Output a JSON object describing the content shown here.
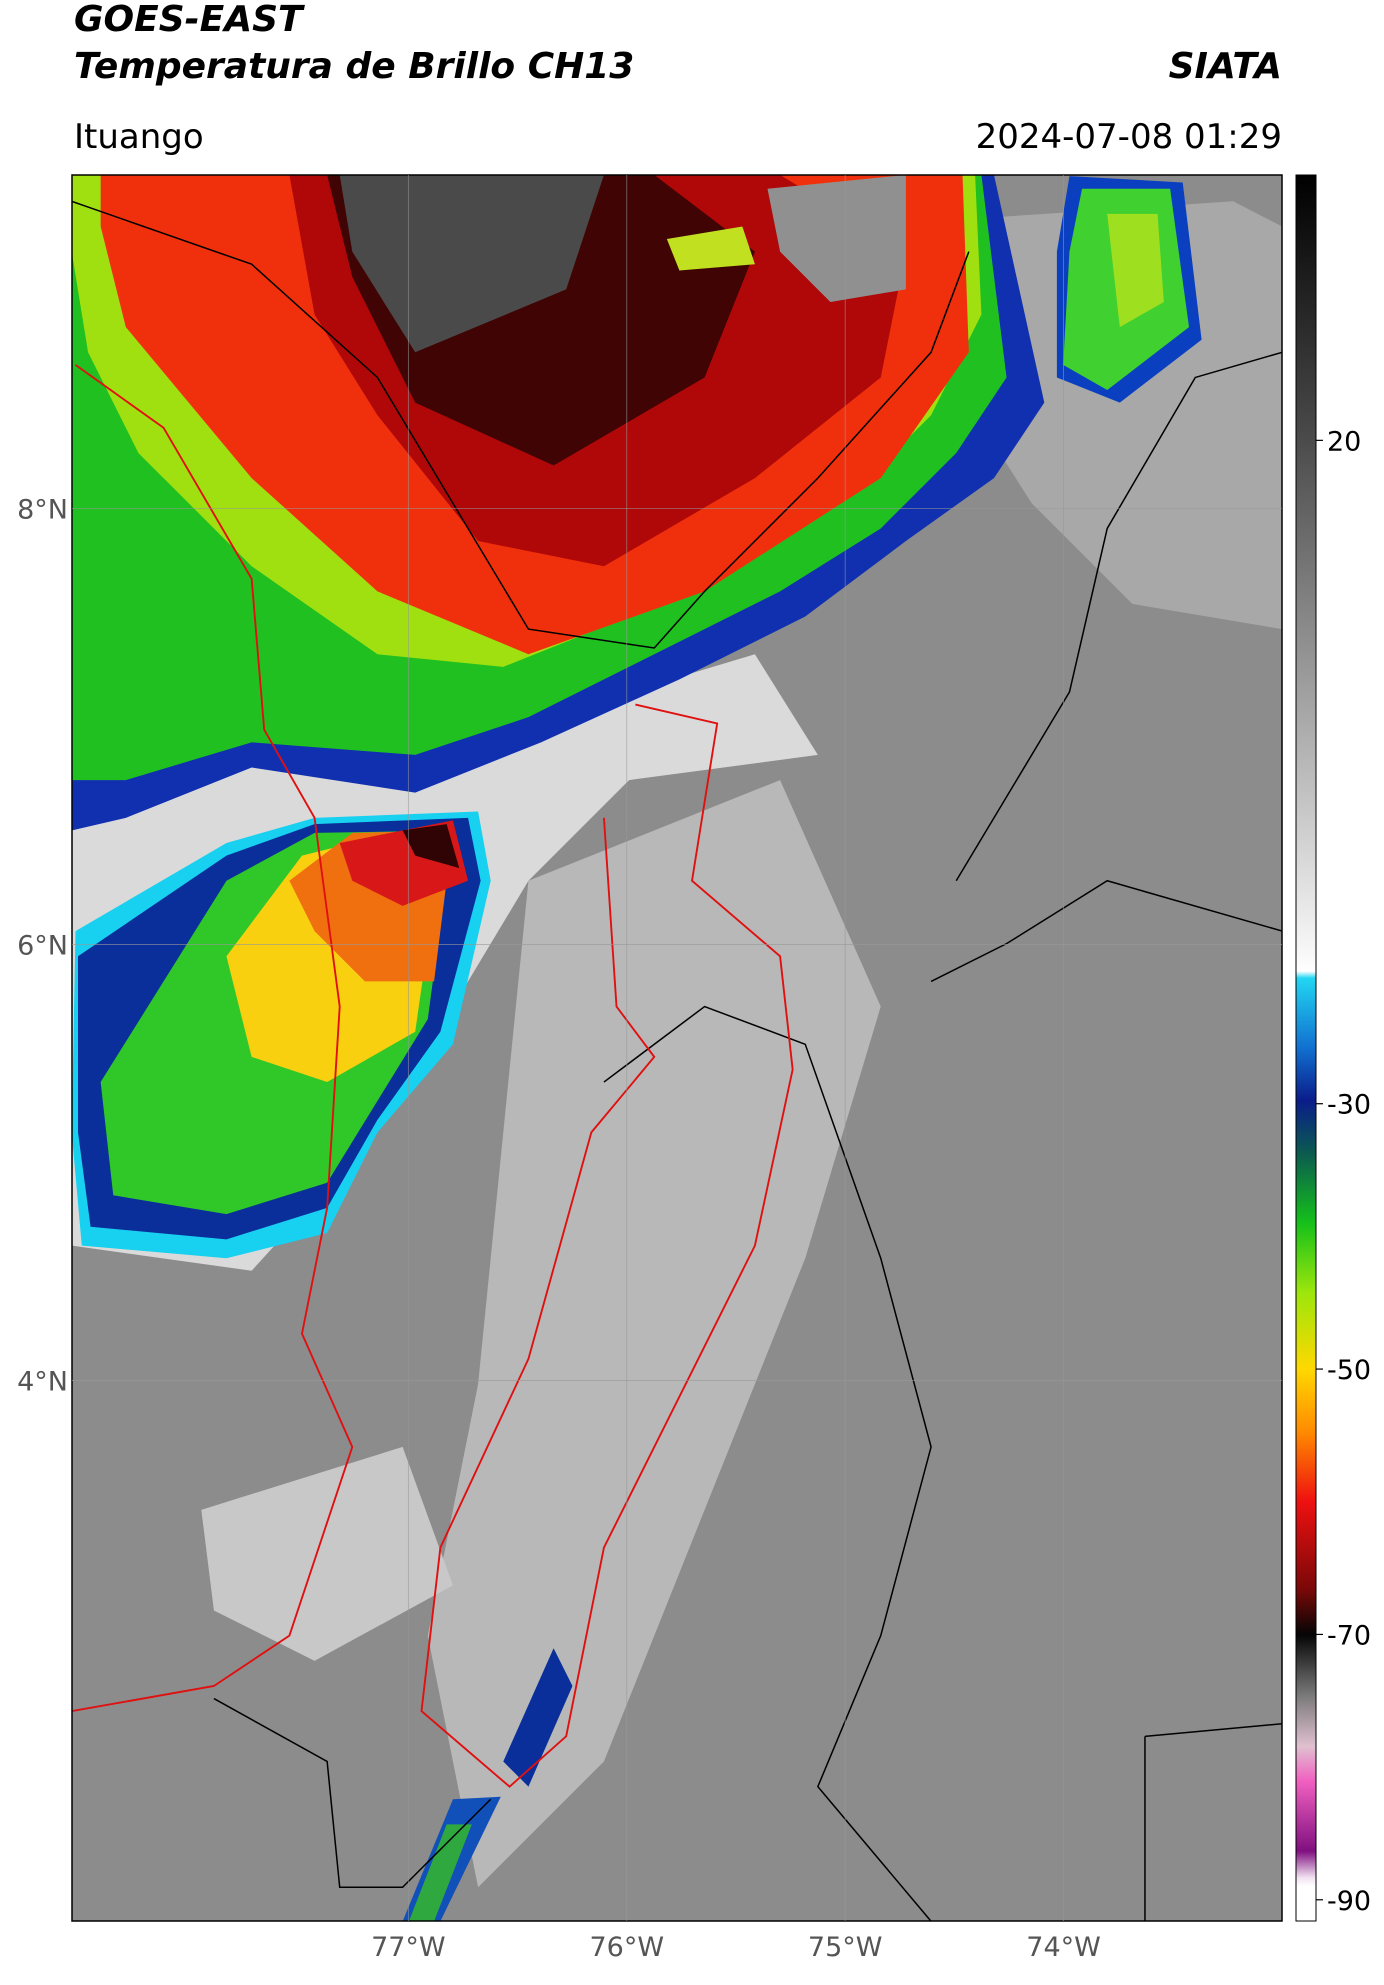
{
  "header": {
    "title": "GOES-EAST",
    "subtitle": "Temperatura de Brillo CH13",
    "brand": "SIATA",
    "location": "Ituango",
    "timestamp": "2024-07-08 01:29"
  },
  "chart_data": {
    "type": "map",
    "xlim": [
      -78.54,
      -73.0
    ],
    "ylim": [
      1.52,
      9.53
    ],
    "xticks": [
      {
        "value": -77,
        "label": "77°W"
      },
      {
        "value": -76,
        "label": "76°W"
      },
      {
        "value": -75,
        "label": "75°W"
      },
      {
        "value": -74,
        "label": "74°W"
      }
    ],
    "yticks": [
      {
        "value": 8,
        "label": "8°N"
      },
      {
        "value": 6,
        "label": "6°N"
      },
      {
        "value": 4,
        "label": "4°N"
      }
    ],
    "grid": true,
    "colorbar": {
      "lim": [
        -91.6,
        40
      ],
      "ticks": [
        20,
        -30,
        -50,
        -70,
        -90
      ]
    }
  }
}
